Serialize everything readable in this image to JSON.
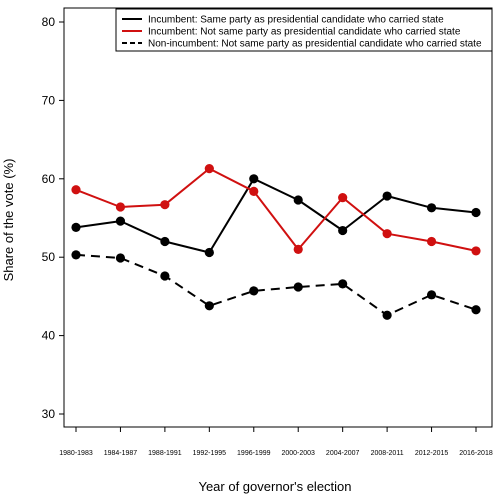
{
  "chart_data": {
    "type": "line",
    "title": "",
    "xlabel": "Year of governor's election",
    "ylabel": "Share of the vote (%)",
    "categories": [
      "1980-1983",
      "1984-1987",
      "1988-1991",
      "1992-1995",
      "1996-1999",
      "2000-2003",
      "2004-2007",
      "2008-2011",
      "2012-2015",
      "2016-2018"
    ],
    "ylim": [
      28,
      82
    ],
    "yticks": [
      30,
      40,
      50,
      60,
      70,
      80
    ],
    "grid": false,
    "legend_position": "top-right",
    "series": [
      {
        "name": "Incumbent: Same party as presidential candidate who carried state",
        "color": "#000000",
        "line_style": "solid",
        "values": [
          53.8,
          54.6,
          52.0,
          50.6,
          60.0,
          57.3,
          53.4,
          57.8,
          56.3,
          55.7
        ]
      },
      {
        "name": "Incumbent: Not same party as presidential candidate who carried state",
        "color": "#d01010",
        "line_style": "solid",
        "values": [
          58.6,
          56.4,
          56.7,
          61.3,
          58.4,
          51.0,
          57.6,
          53.0,
          52.0,
          50.8
        ]
      },
      {
        "name": "Non-incumbent: Not same party as presidential candidate who carried state",
        "color": "#000000",
        "line_style": "dashed",
        "values": [
          50.3,
          49.9,
          47.6,
          43.8,
          45.7,
          46.2,
          46.6,
          42.6,
          45.2,
          43.3
        ]
      }
    ]
  }
}
